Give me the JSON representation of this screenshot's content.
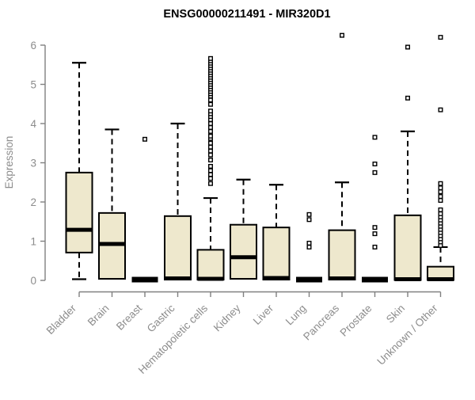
{
  "chart_data": {
    "type": "boxplot",
    "title": "ENSG00000211491 - MIR320D1",
    "ylabel": "Expression",
    "xlabel": "",
    "ylim": [
      0,
      6
    ],
    "yticks": [
      0,
      1,
      2,
      3,
      4,
      5,
      6
    ],
    "grid": false,
    "legend": null,
    "categories": [
      "Bladder",
      "Brain",
      "Breast",
      "Gastric",
      "Hematopoietic cells",
      "Kidney",
      "Liver",
      "Lung",
      "Pancreas",
      "Prostate",
      "Skin",
      "Unknown / Other"
    ],
    "boxes": [
      {
        "category": "Bladder",
        "whisker_low": 0.03,
        "q1": 0.71,
        "median": 1.29,
        "q3": 2.75,
        "whisker_high": 5.55,
        "outliers": []
      },
      {
        "category": "Brain",
        "whisker_low": 0.04,
        "q1": 0.04,
        "median": 0.93,
        "q3": 1.72,
        "whisker_high": 3.85,
        "outliers": []
      },
      {
        "category": "Breast",
        "whisker_low": 0.02,
        "q1": 0.02,
        "median": 0.02,
        "q3": 0.02,
        "whisker_high": 0.02,
        "outliers": [
          3.6
        ]
      },
      {
        "category": "Gastric",
        "whisker_low": 0.02,
        "q1": 0.02,
        "median": 0.05,
        "q3": 1.64,
        "whisker_high": 4.0,
        "outliers": []
      },
      {
        "category": "Hematopoietic cells",
        "whisker_low": 0.02,
        "q1": 0.02,
        "median": 0.04,
        "q3": 0.78,
        "whisker_high": 2.1,
        "outliers": [
          2.47,
          2.6,
          2.7,
          2.8,
          2.91,
          3.07,
          3.2,
          3.3,
          3.4,
          3.5,
          3.62,
          3.68,
          3.8,
          3.9,
          4.0,
          4.1,
          4.18,
          4.25,
          4.32,
          4.49,
          4.6,
          4.7,
          4.76,
          4.82,
          4.88,
          4.94,
          5.0,
          5.06,
          5.12,
          5.18,
          5.24,
          5.3,
          5.36,
          5.42,
          5.48,
          5.54,
          5.6,
          5.66
        ]
      },
      {
        "category": "Kidney",
        "whisker_low": 0.04,
        "q1": 0.04,
        "median": 0.59,
        "q3": 1.42,
        "whisker_high": 2.57,
        "outliers": []
      },
      {
        "category": "Liver",
        "whisker_low": 0.02,
        "q1": 0.02,
        "median": 0.06,
        "q3": 1.35,
        "whisker_high": 2.44,
        "outliers": []
      },
      {
        "category": "Lung",
        "whisker_low": 0.02,
        "q1": 0.02,
        "median": 0.02,
        "q3": 0.02,
        "whisker_high": 0.02,
        "outliers": [
          0.85,
          0.95,
          1.55,
          1.68
        ]
      },
      {
        "category": "Pancreas",
        "whisker_low": 0.02,
        "q1": 0.02,
        "median": 0.05,
        "q3": 1.28,
        "whisker_high": 2.5,
        "outliers": [
          6.25
        ]
      },
      {
        "category": "Prostate",
        "whisker_low": 0.02,
        "q1": 0.02,
        "median": 0.02,
        "q3": 0.02,
        "whisker_high": 0.02,
        "outliers": [
          0.85,
          1.19,
          1.35,
          2.75,
          2.97,
          3.65
        ]
      },
      {
        "category": "Skin",
        "whisker_low": 0.01,
        "q1": 0.01,
        "median": 0.03,
        "q3": 1.66,
        "whisker_high": 3.8,
        "outliers": [
          4.65,
          5.95
        ]
      },
      {
        "category": "Unknown / Other",
        "whisker_low": 0.01,
        "q1": 0.01,
        "median": 0.03,
        "q3": 0.35,
        "whisker_high": 0.85,
        "outliers": [
          0.89,
          0.98,
          1.06,
          1.14,
          1.22,
          1.3,
          1.38,
          1.46,
          1.54,
          1.62,
          1.7,
          1.8,
          2.04,
          2.14,
          2.26,
          2.36,
          2.47,
          4.35,
          6.2
        ]
      }
    ],
    "colors": {
      "box_fill": "#EEE8CD",
      "box_border": "#000000",
      "median": "#000000",
      "whisker": "#000000",
      "outlier_stroke": "#000000",
      "outlier_fill": "#FFFFFF",
      "axis": "#808080",
      "tick_label": "#8C8C8C",
      "title": "#000000",
      "background": "#FFFFFF"
    }
  }
}
